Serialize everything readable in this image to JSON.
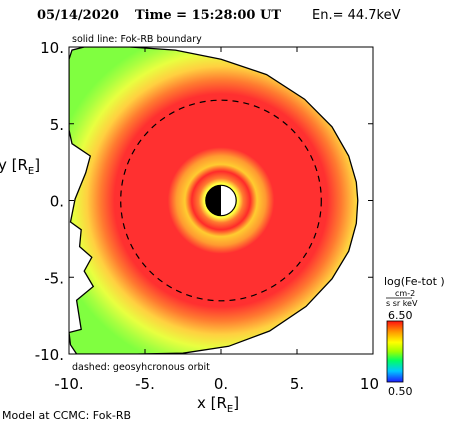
{
  "header": {
    "date": "05/14/2020",
    "time_label": "Time = 15:28:00 UT",
    "energy_label": "En.= 44.7keV"
  },
  "chart_data": {
    "type": "heatmap",
    "title": "05/14/2020 Time = 15:28:00 UT En.= 44.7keV",
    "xlabel": "x [RE]",
    "ylabel": "y [RE]",
    "xlim": [
      -10,
      10
    ],
    "ylim": [
      -10,
      10
    ],
    "x_ticks": [
      "-10.",
      "-5.",
      "0.",
      "5.",
      "10"
    ],
    "y_ticks": [
      "10.",
      "5.",
      "0.",
      "-5.",
      "-10."
    ],
    "annotations": {
      "solid_line": "solid line: Fok-RB boundary",
      "dashed_line": "dashed: geosyhcronous orbit"
    },
    "colorbar": {
      "title": "log(Fe-tot )",
      "units_num": "cm-2",
      "units_den": "s sr keV",
      "max_label": "6.50",
      "min_label": "0.50",
      "max": 6.5,
      "min": 0.5,
      "colormap": "rainbow"
    },
    "field": {
      "description_levels": [
        {
          "r_min": 0,
          "r_max": 1,
          "log_flux": 0.5
        },
        {
          "r_min": 1.0,
          "r_max": 1.6,
          "log_flux": 4.5
        },
        {
          "r_min": 1.6,
          "r_max": 2.6,
          "log_flux": 5.2
        },
        {
          "r_min": 2.6,
          "r_max": 3.4,
          "log_flux": 6.0
        },
        {
          "r_min": 3.4,
          "r_max": 4.0,
          "log_flux": 5.6
        },
        {
          "r_min": 4.0,
          "r_max": 8.2,
          "log_flux": 6.3
        },
        {
          "r_min": 8.2,
          "r_max": 9.5,
          "log_flux": 5.5
        },
        {
          "r_min": 9.5,
          "r_max": 12,
          "log_flux": 4.6
        }
      ]
    },
    "geosynchronous_radius": 6.6,
    "boundary_polygon": [
      [
        -10,
        9.2
      ],
      [
        -9.8,
        9.8
      ],
      [
        -9.0,
        10.0
      ],
      [
        -6,
        10.0
      ],
      [
        -3,
        9.8
      ],
      [
        0,
        9.2
      ],
      [
        3,
        8.2
      ],
      [
        5.5,
        6.6
      ],
      [
        7.3,
        4.8
      ],
      [
        8.4,
        2.9
      ],
      [
        8.9,
        1.2
      ],
      [
        9.0,
        0
      ],
      [
        8.9,
        -1.5
      ],
      [
        8.4,
        -3.3
      ],
      [
        7.3,
        -5.1
      ],
      [
        5.6,
        -6.9
      ],
      [
        3.2,
        -8.5
      ],
      [
        0.5,
        -9.5
      ],
      [
        -2.5,
        -9.95
      ],
      [
        -5.5,
        -10.0
      ],
      [
        -9.5,
        -10.0
      ],
      [
        -9.9,
        -9.4
      ],
      [
        -10,
        -8.6
      ],
      [
        -9.2,
        -8.4
      ],
      [
        -9.5,
        -6.5
      ],
      [
        -8.4,
        -5.6
      ],
      [
        -9.0,
        -4.6
      ],
      [
        -8.5,
        -3.7
      ],
      [
        -9.3,
        -3.0
      ],
      [
        -9.2,
        -1.9
      ],
      [
        -9.9,
        -1.4
      ],
      [
        -9.6,
        0.1
      ],
      [
        -8.9,
        1.8
      ],
      [
        -8.6,
        2.9
      ],
      [
        -9.8,
        3.7
      ],
      [
        -10,
        4.6
      ],
      [
        -10,
        9.2
      ]
    ]
  },
  "footer": {
    "credit": "Model at CCMC: Fok-RB"
  },
  "colors": {
    "background": "#ffffff",
    "axes": "#000000",
    "earth_day": "#ffffff",
    "earth_night": "#000000"
  }
}
